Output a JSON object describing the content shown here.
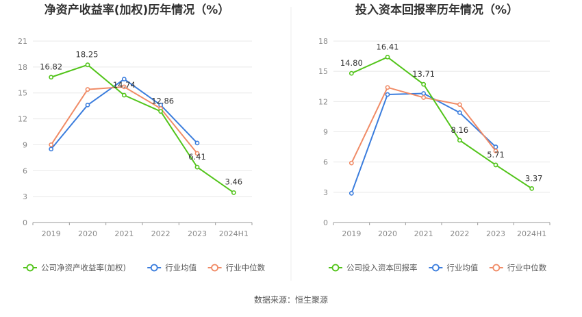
{
  "source_label": "数据来源：恒生聚源",
  "chart_data": [
    {
      "type": "line",
      "title": "净资产收益率(加权)历年情况（%）",
      "categories": [
        "2019",
        "2020",
        "2021",
        "2022",
        "2023",
        "2024H1"
      ],
      "ylim": [
        0,
        21
      ],
      "yticks": [
        0,
        3,
        6,
        9,
        12,
        15,
        18,
        21
      ],
      "grid": true,
      "legend_position": "bottom-left",
      "series": [
        {
          "name": "公司净资产收益率(加权)",
          "color": "#52c41a",
          "values": [
            16.82,
            18.25,
            14.74,
            12.86,
            6.41,
            3.46
          ],
          "labels": [
            "16.82",
            "18.25",
            "14.74",
            "12.86",
            "6.41",
            "3.46"
          ]
        },
        {
          "name": "行业均值",
          "color": "#3b7ddd",
          "values": [
            8.5,
            13.6,
            16.6,
            13.6,
            9.2,
            null
          ]
        },
        {
          "name": "行业中位数",
          "color": "#f08b66",
          "values": [
            9.0,
            15.4,
            15.7,
            13.2,
            8.0,
            null
          ]
        }
      ]
    },
    {
      "type": "line",
      "title": "投入资本回报率历年情况（%）",
      "categories": [
        "2019",
        "2020",
        "2021",
        "2022",
        "2023",
        "2024H1"
      ],
      "ylim": [
        0,
        18
      ],
      "yticks": [
        0,
        3,
        6,
        9,
        12,
        15,
        18
      ],
      "grid": true,
      "legend_position": "bottom-left",
      "series": [
        {
          "name": "公司投入资本回报率",
          "color": "#52c41a",
          "values": [
            14.8,
            16.41,
            13.71,
            8.16,
            5.71,
            3.37
          ],
          "labels": [
            "14.80",
            "16.41",
            "13.71",
            "8.16",
            "5.71",
            "3.37"
          ]
        },
        {
          "name": "行业均值",
          "color": "#3b7ddd",
          "values": [
            2.9,
            12.7,
            12.8,
            10.9,
            7.5,
            null
          ]
        },
        {
          "name": "行业中位数",
          "color": "#f08b66",
          "values": [
            5.9,
            13.4,
            12.4,
            11.7,
            7.1,
            null
          ]
        }
      ]
    }
  ]
}
